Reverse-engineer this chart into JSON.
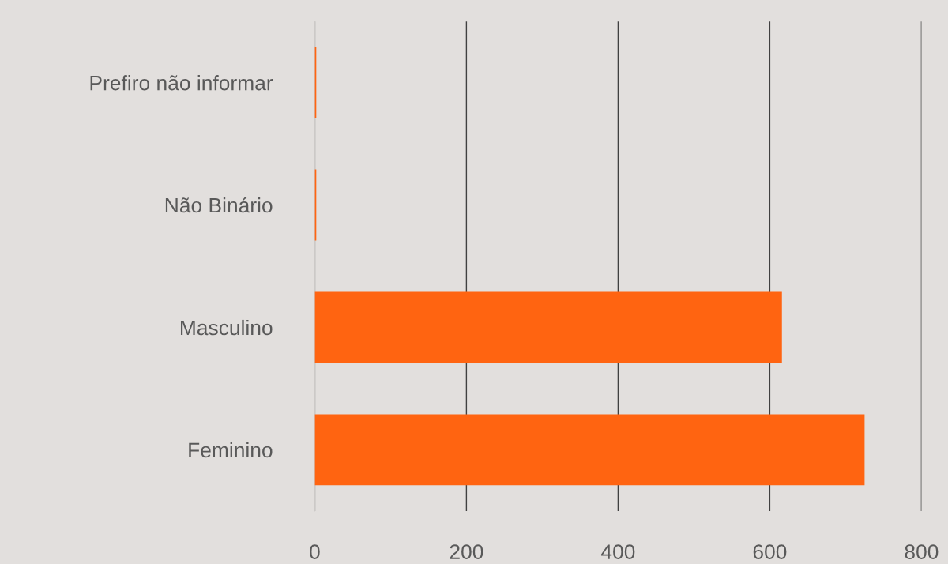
{
  "chart_data": {
    "type": "bar",
    "orientation": "horizontal",
    "categories": [
      "Prefiro não informar",
      "Não Binário",
      "Masculino",
      "Feminino"
    ],
    "values": [
      2,
      2,
      616,
      725
    ],
    "color": "#ff6411",
    "xlim": [
      0,
      800
    ],
    "xticks": [
      0,
      200,
      400,
      600,
      800
    ],
    "grid": "x"
  }
}
